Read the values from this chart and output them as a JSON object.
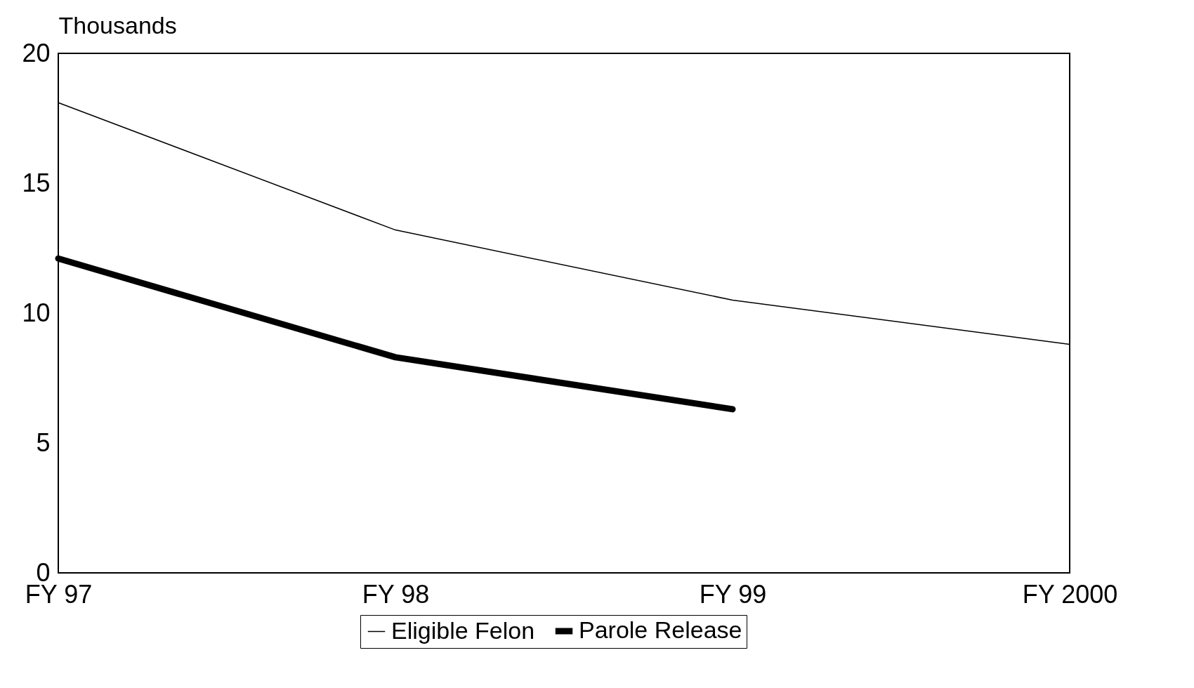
{
  "chart_data": {
    "type": "line",
    "ylabel": "Thousands",
    "categories": [
      "FY 97",
      "FY 98",
      "FY 99",
      "FY 2000"
    ],
    "series": [
      {
        "name": "Eligible Felon",
        "color": "#000000",
        "values": [
          18.1,
          13.2,
          10.5,
          8.8
        ]
      },
      {
        "name": "Parole Release",
        "color": "#000000",
        "values": [
          12.1,
          8.3,
          6.3,
          null
        ]
      }
    ],
    "ylim": [
      0,
      20
    ],
    "yticks": [
      0,
      5,
      10,
      15,
      20
    ],
    "grid": false,
    "legend": "bottom",
    "marker": "none",
    "line_style": "solid"
  }
}
